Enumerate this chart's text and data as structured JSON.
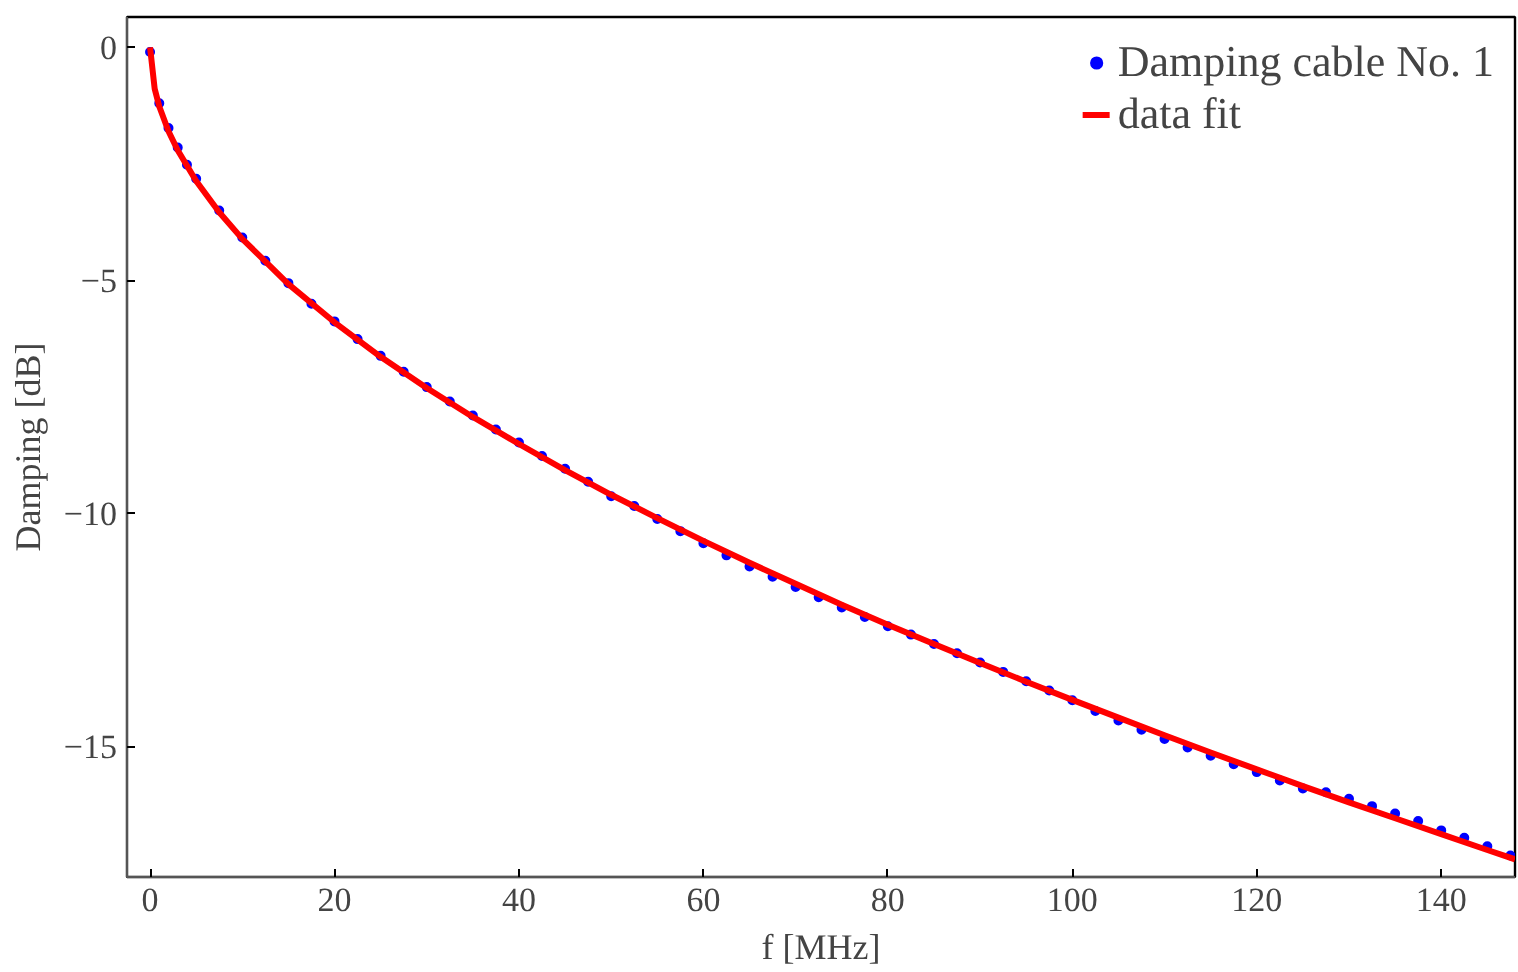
{
  "chart_data": {
    "type": "scatter",
    "xlabel": "f [MHz]",
    "ylabel": "Damping [dB]",
    "xlim": [
      -2.5,
      148
    ],
    "ylim": [
      -17.8,
      0.65
    ],
    "xticks": [
      0,
      20,
      40,
      60,
      80,
      100,
      120,
      140
    ],
    "yticks": [
      {
        "value": 0,
        "label": "0"
      },
      {
        "value": -5,
        "label": "−5"
      },
      {
        "value": -10,
        "label": "−10"
      },
      {
        "value": -15,
        "label": "−15"
      }
    ],
    "grid": false,
    "legend": "top right",
    "series": [
      {
        "name": "Damping cable No. 1",
        "color": "#0000ff",
        "marker": "circle",
        "x": [
          0,
          1,
          2,
          3,
          4,
          5,
          7.5,
          10,
          12.5,
          15,
          17.5,
          20,
          22.5,
          25,
          27.5,
          30,
          32.5,
          35,
          37.5,
          40,
          42.5,
          45,
          47.5,
          50,
          52.5,
          55,
          57.5,
          60,
          62.5,
          65,
          67.5,
          70,
          72.5,
          75,
          77.5,
          80,
          82.5,
          85,
          87.5,
          90,
          92.5,
          95,
          97.5,
          100,
          102.5,
          105,
          107.5,
          110,
          112.5,
          115,
          117.5,
          120,
          122.5,
          125,
          127.5,
          130,
          132.5,
          135,
          137.5,
          140,
          142.5,
          145,
          147.5
        ],
        "values": [
          -0.1,
          -1.2,
          -1.73,
          -2.15,
          -2.52,
          -2.82,
          -3.5,
          -4.08,
          -4.58,
          -5.06,
          -5.5,
          -5.88,
          -6.26,
          -6.62,
          -6.96,
          -7.29,
          -7.6,
          -7.9,
          -8.2,
          -8.48,
          -8.77,
          -9.04,
          -9.32,
          -9.63,
          -9.84,
          -10.12,
          -10.38,
          -10.64,
          -10.9,
          -11.14,
          -11.36,
          -11.58,
          -11.8,
          -12.02,
          -12.22,
          -12.42,
          -12.6,
          -12.8,
          -13.0,
          -13.2,
          -13.4,
          -13.6,
          -13.8,
          -14.01,
          -14.24,
          -14.44,
          -14.64,
          -14.84,
          -15.02,
          -15.2,
          -15.38,
          -15.55,
          -15.73,
          -15.9,
          -15.98,
          -16.12,
          -16.28,
          -16.44,
          -16.6,
          -16.8,
          -16.96,
          -17.14,
          -17.34
        ]
      },
      {
        "name": "data fit",
        "color": "#ff0000",
        "type": "line",
        "marker": "none",
        "x": [
          0,
          0.5,
          1,
          2,
          3,
          5,
          7.5,
          10,
          15,
          20,
          25,
          30,
          35,
          40,
          45,
          50,
          55,
          60,
          65,
          70,
          75,
          80,
          85,
          90,
          95,
          100,
          105,
          110,
          115,
          120,
          125,
          130,
          135,
          140,
          145,
          148
        ],
        "values": [
          0,
          -0.89,
          -1.27,
          -1.8,
          -2.21,
          -2.87,
          -3.54,
          -4.11,
          -5.08,
          -5.9,
          -6.64,
          -7.31,
          -7.93,
          -8.51,
          -9.07,
          -9.6,
          -10.1,
          -10.59,
          -11.06,
          -11.51,
          -11.96,
          -12.39,
          -12.8,
          -13.21,
          -13.61,
          -14.0,
          -14.38,
          -14.76,
          -15.13,
          -15.49,
          -15.85,
          -16.2,
          -16.54,
          -16.88,
          -17.22,
          -17.42
        ]
      }
    ]
  }
}
